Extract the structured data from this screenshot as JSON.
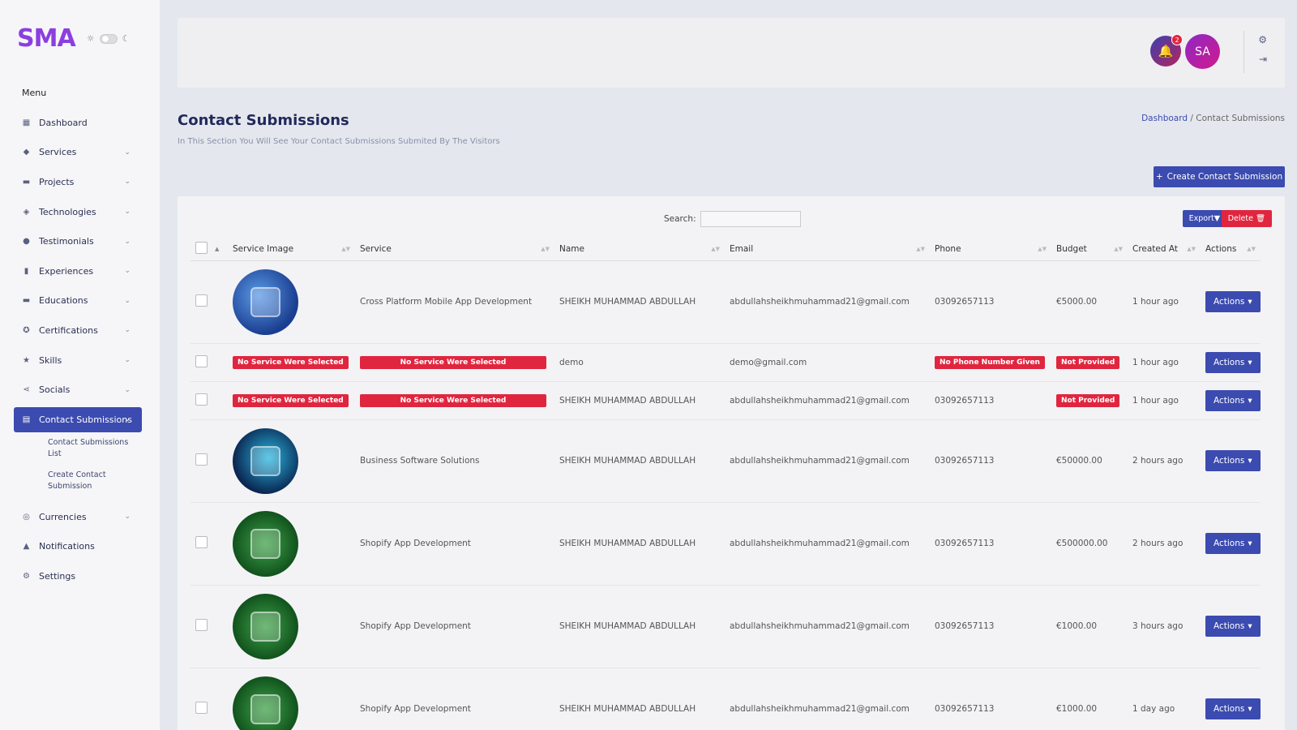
{
  "app": {
    "logo": "SMA"
  },
  "sidebar": {
    "menu_label": "Menu",
    "items": [
      {
        "label": "Dashboard",
        "icon": "dashboard-icon",
        "chevron": false
      },
      {
        "label": "Services",
        "icon": "tag-icon",
        "chevron": true
      },
      {
        "label": "Projects",
        "icon": "folder-icon",
        "chevron": true
      },
      {
        "label": "Technologies",
        "icon": "cube-icon",
        "chevron": true
      },
      {
        "label": "Testimonials",
        "icon": "comment-icon",
        "chevron": true
      },
      {
        "label": "Experiences",
        "icon": "badge-icon",
        "chevron": true
      },
      {
        "label": "Educations",
        "icon": "book-icon",
        "chevron": true
      },
      {
        "label": "Certifications",
        "icon": "certificate-icon",
        "chevron": true
      },
      {
        "label": "Skills",
        "icon": "star-icon",
        "chevron": true
      },
      {
        "label": "Socials",
        "icon": "share-icon",
        "chevron": true
      },
      {
        "label": "Contact Submissions",
        "icon": "inbox-icon",
        "chevron": true,
        "active": true
      },
      {
        "label": "Currencies",
        "icon": "coins-icon",
        "chevron": true
      },
      {
        "label": "Notifications",
        "icon": "bell-icon",
        "chevron": false
      },
      {
        "label": "Settings",
        "icon": "gear-icon",
        "chevron": false
      }
    ],
    "submenu": [
      {
        "label": "Contact Submissions List"
      },
      {
        "label": "Create Contact Submission"
      }
    ]
  },
  "header": {
    "notification_count": "2",
    "avatar_initials": "SA"
  },
  "page": {
    "title": "Contact Submissions",
    "subtitle": "In This Section You Will See Your Contact Submissions Submited By The Visitors",
    "breadcrumb": {
      "home": "Dashboard",
      "separator": "/",
      "current": "Contact Submissions"
    },
    "create_button": "Create Contact Submission"
  },
  "table": {
    "search_label": "Search:",
    "search_value": "",
    "export_label": "Export",
    "delete_label": "Delete",
    "columns": [
      "Service Image",
      "Service",
      "Name",
      "Email",
      "Phone",
      "Budget",
      "Created At",
      "Actions"
    ],
    "rows": [
      {
        "image": "blue",
        "service": "Cross Platform Mobile App Development",
        "name": "SHEIKH MUHAMMAD ABDULLAH",
        "email": "abdullahsheikhmuhammad21@gmail.com",
        "phone": "03092657113",
        "budget": "€5000.00",
        "created": "1 hour ago",
        "action": "Actions"
      },
      {
        "image": null,
        "image_badge": "No Service Were Selected",
        "service_badge": "No Service Were Selected",
        "name": "demo",
        "email": "demo@gmail.com",
        "phone_badge": "No Phone Number Given",
        "budget_badge": "Not Provided",
        "created": "1 hour ago",
        "action": "Actions"
      },
      {
        "image": null,
        "image_badge": "No Service Were Selected",
        "service_badge": "No Service Were Selected",
        "name": "SHEIKH MUHAMMAD ABDULLAH",
        "email": "abdullahsheikhmuhammad21@gmail.com",
        "phone": "03092657113",
        "budget_badge": "Not Provided",
        "created": "1 hour ago",
        "action": "Actions"
      },
      {
        "image": "dark",
        "service": "Business Software Solutions",
        "name": "SHEIKH MUHAMMAD ABDULLAH",
        "email": "abdullahsheikhmuhammad21@gmail.com",
        "phone": "03092657113",
        "budget": "€50000.00",
        "created": "2 hours ago",
        "action": "Actions"
      },
      {
        "image": "green",
        "service": "Shopify App Development",
        "name": "SHEIKH MUHAMMAD ABDULLAH",
        "email": "abdullahsheikhmuhammad21@gmail.com",
        "phone": "03092657113",
        "budget": "€500000.00",
        "created": "2 hours ago",
        "action": "Actions"
      },
      {
        "image": "green",
        "service": "Shopify App Development",
        "name": "SHEIKH MUHAMMAD ABDULLAH",
        "email": "abdullahsheikhmuhammad21@gmail.com",
        "phone": "03092657113",
        "budget": "€1000.00",
        "created": "3 hours ago",
        "action": "Actions"
      },
      {
        "image": "green",
        "service": "Shopify App Development",
        "name": "SHEIKH MUHAMMAD ABDULLAH",
        "email": "abdullahsheikhmuhammad21@gmail.com",
        "phone": "03092657113",
        "budget": "€1000.00",
        "created": "1 day ago",
        "action": "Actions"
      }
    ]
  },
  "colors": {
    "primary": "#3b4bb0",
    "danger": "#e0263f",
    "logo": "#8b3fe0"
  }
}
